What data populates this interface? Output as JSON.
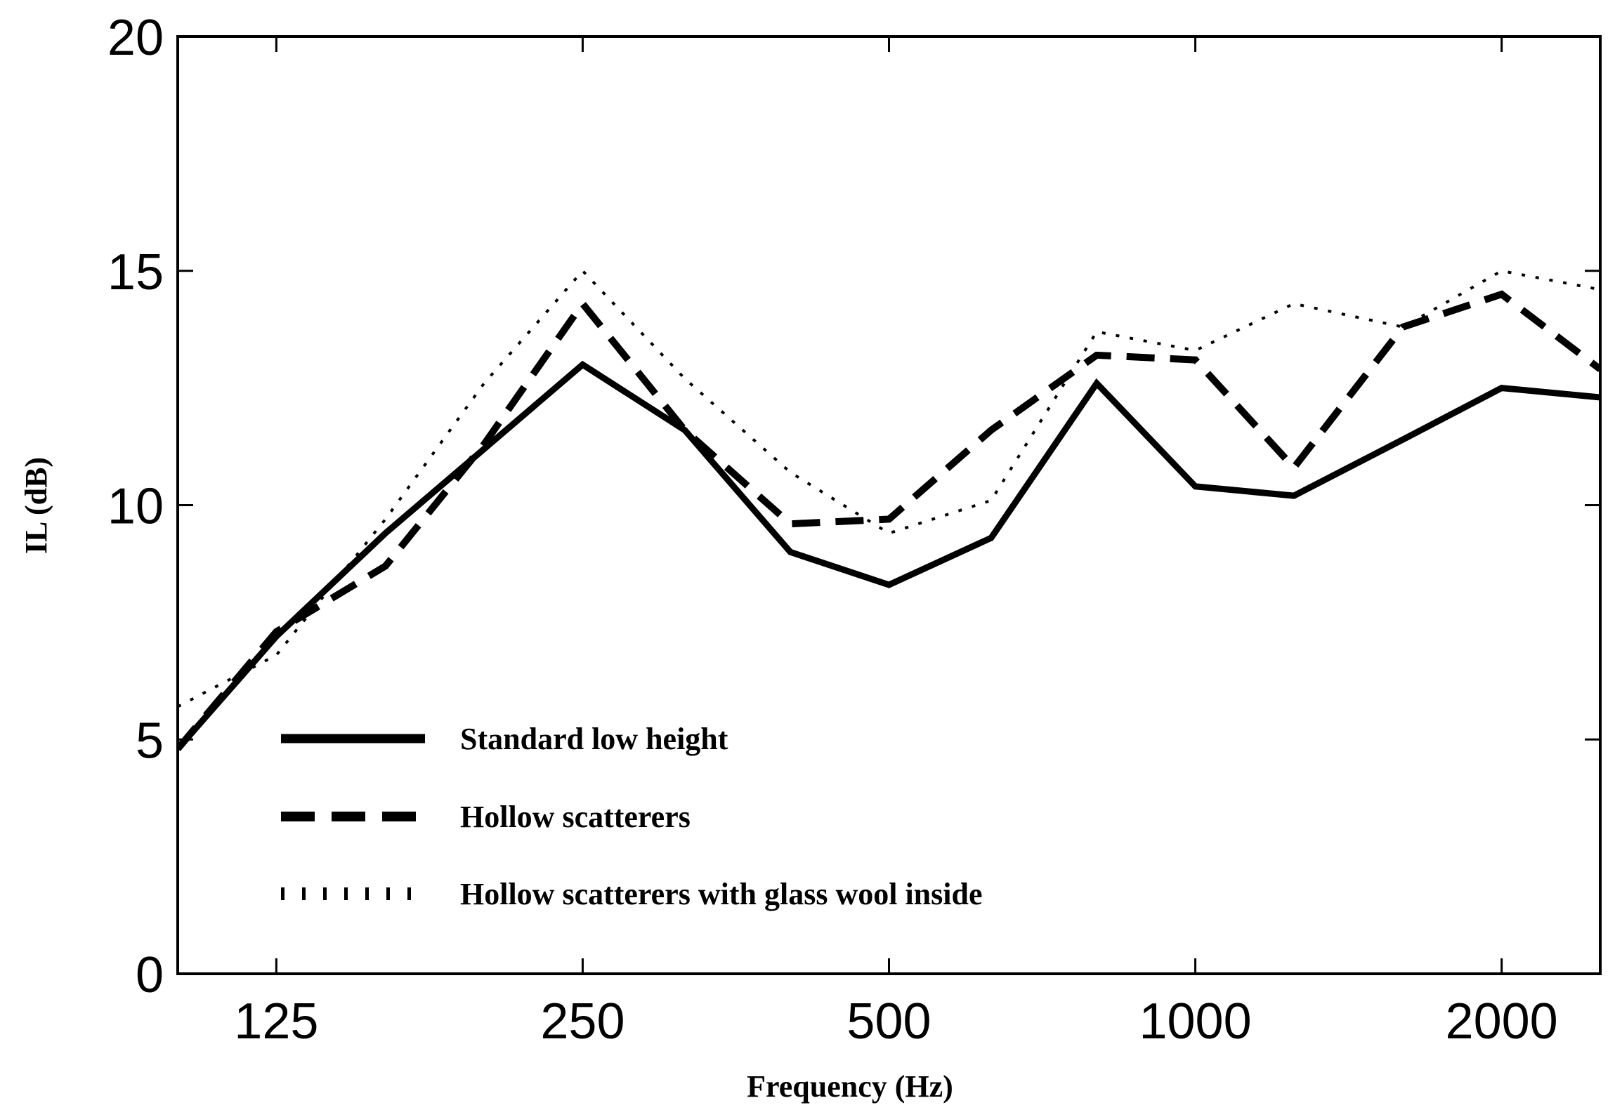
{
  "chart_data": {
    "type": "line",
    "title": "",
    "xlabel": "Frequency  (Hz)",
    "ylabel": "IL (dB)",
    "xscale": "log2",
    "xlim": [
      100,
      2500
    ],
    "ylim": [
      0,
      20
    ],
    "x_ticks": [
      125,
      250,
      500,
      1000,
      2000
    ],
    "x_tick_labels": [
      "125",
      "250",
      "500",
      "1000",
      "2000"
    ],
    "y_ticks": [
      0,
      5,
      10,
      15,
      20
    ],
    "y_tick_labels": [
      "0",
      "5",
      "10",
      "15",
      "20"
    ],
    "grid": false,
    "legend_position": "bottom-left",
    "x": [
      100,
      125,
      160,
      200,
      250,
      315,
      400,
      500,
      630,
      800,
      1000,
      1250,
      1600,
      2000,
      2500
    ],
    "series": [
      {
        "name": "Standard low height",
        "style": "solid",
        "values": [
          4.8,
          7.2,
          9.4,
          11.2,
          13.0,
          11.6,
          9.0,
          8.3,
          9.3,
          12.6,
          10.4,
          10.2,
          11.4,
          12.5,
          12.3
        ]
      },
      {
        "name": "Hollow scatterers",
        "style": "dashed",
        "values": [
          4.8,
          7.3,
          8.7,
          11.3,
          14.3,
          11.6,
          9.6,
          9.7,
          11.6,
          13.2,
          13.1,
          10.8,
          13.8,
          14.5,
          12.9
        ]
      },
      {
        "name": "Hollow scatterers with glass wool inside",
        "style": "dotted",
        "values": [
          5.7,
          6.8,
          9.7,
          12.6,
          15.0,
          12.7,
          10.7,
          9.4,
          10.1,
          13.7,
          13.3,
          14.3,
          13.8,
          15.0,
          14.6
        ]
      }
    ]
  }
}
